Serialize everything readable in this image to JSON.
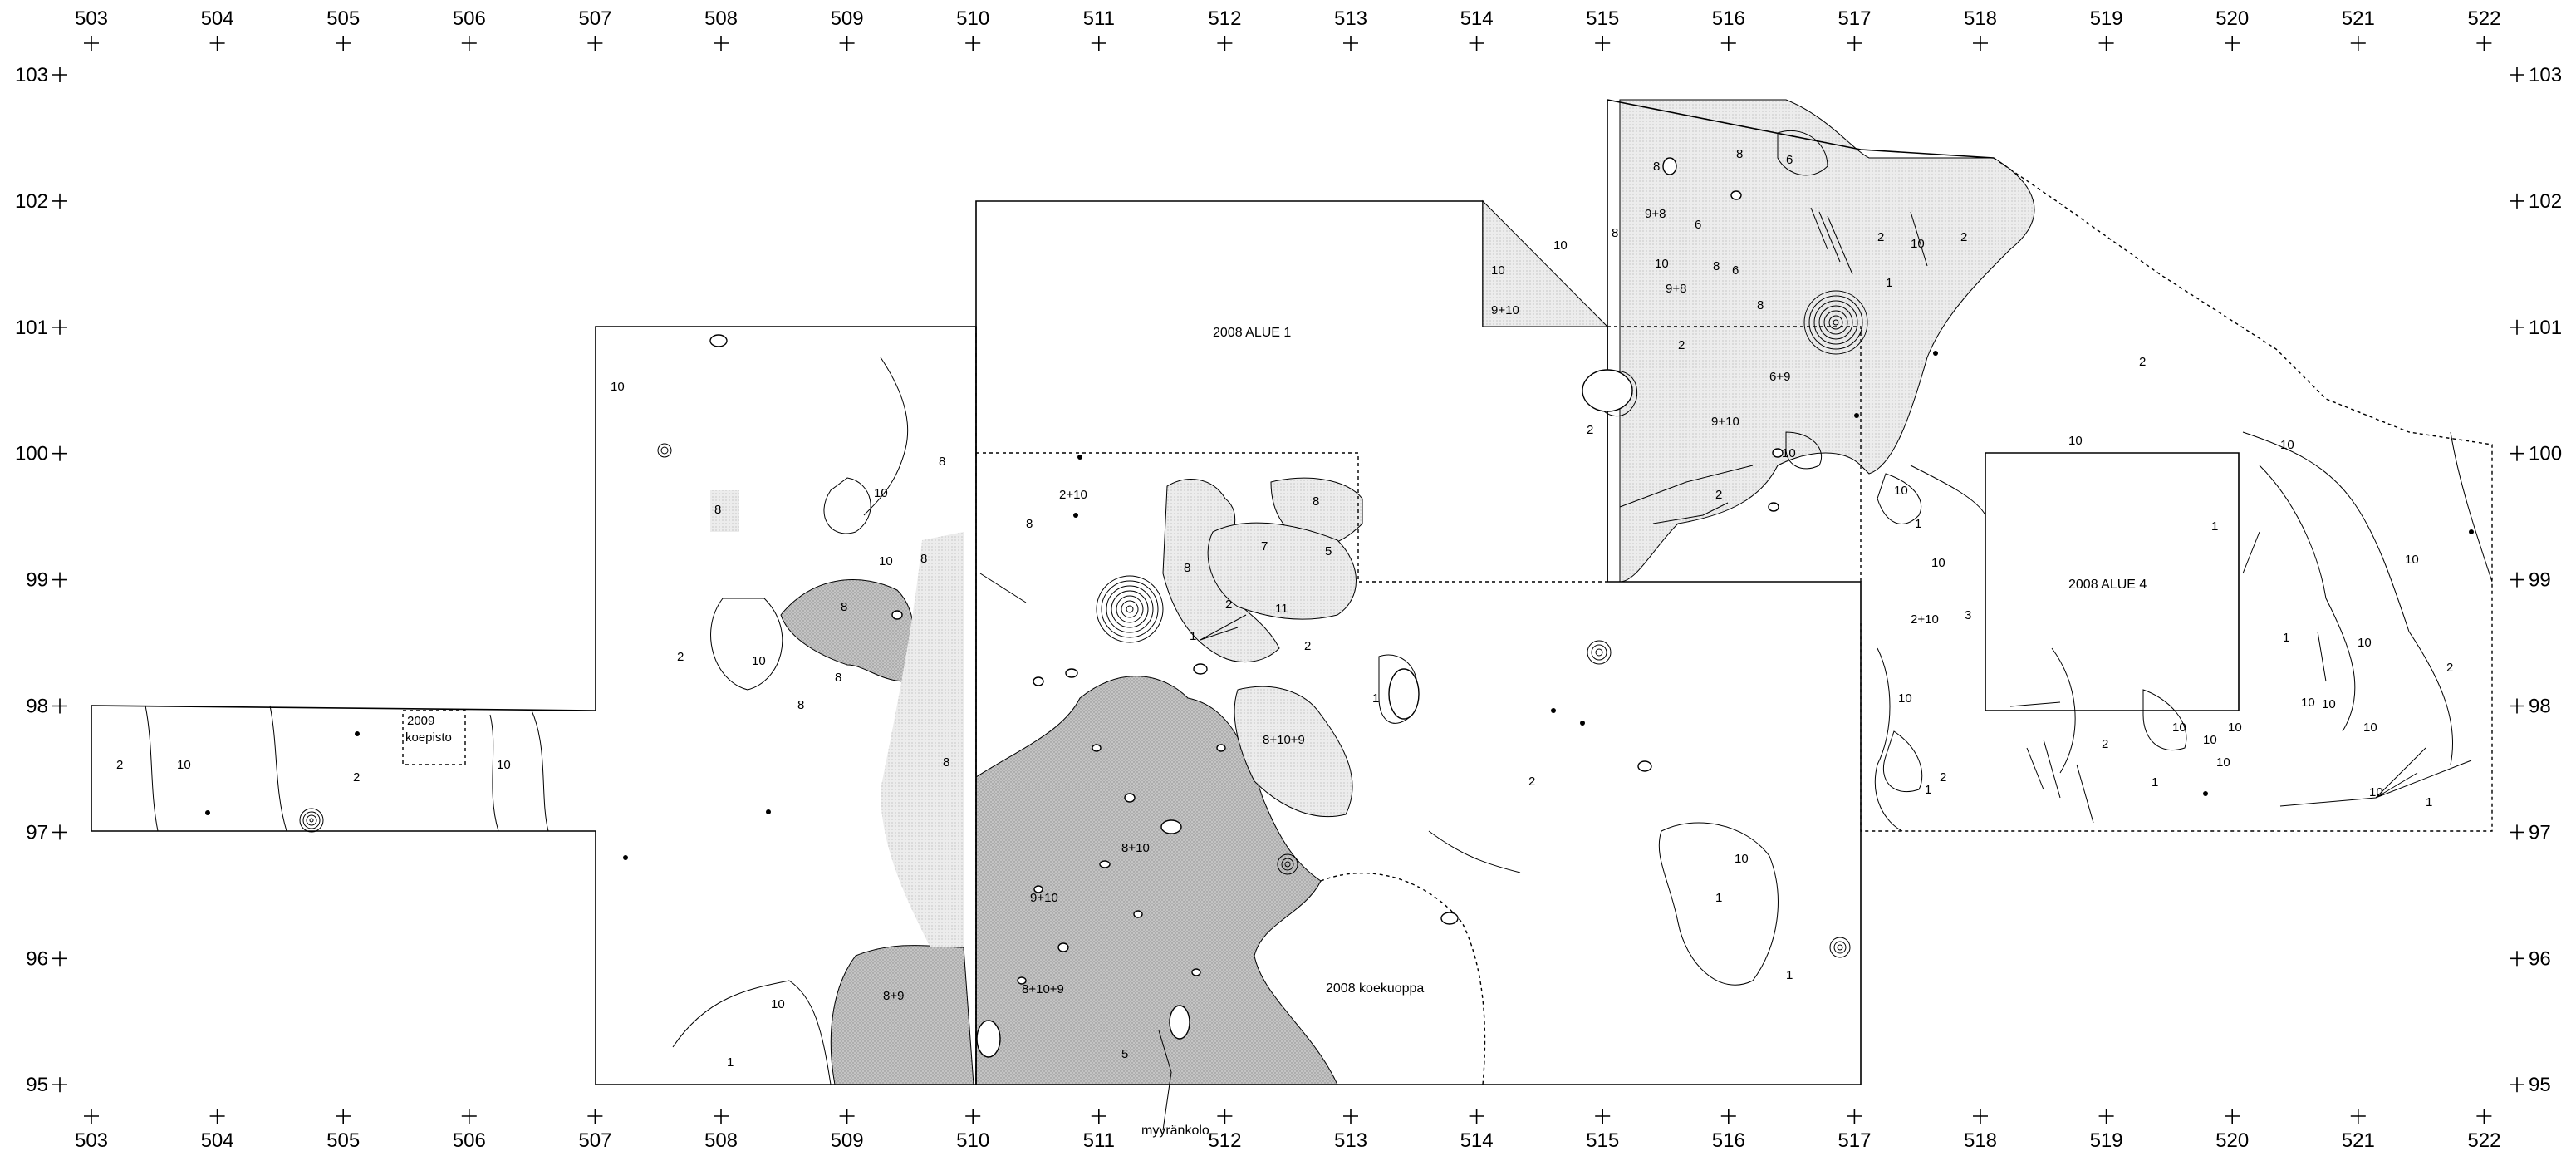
{
  "grid": {
    "x_labels": [
      "503",
      "504",
      "505",
      "506",
      "507",
      "508",
      "509",
      "510",
      "511",
      "512",
      "513",
      "514",
      "515",
      "516",
      "517",
      "518",
      "519",
      "520",
      "521",
      "522"
    ],
    "y_labels": [
      "103",
      "102",
      "101",
      "100",
      "99",
      "98",
      "97",
      "96",
      "95"
    ]
  },
  "areas": {
    "alue1": "2008 ALUE 1",
    "alue4": "2008 ALUE 4",
    "koekuoppa": "2008 koekuoppa",
    "koepisto_year": "2009",
    "koepisto_name": "koepisto",
    "myyrankolo": "myyränkolo"
  },
  "zones": [
    {
      "t": "10"
    },
    {
      "t": "2"
    },
    {
      "t": "10"
    },
    {
      "t": "2"
    },
    {
      "t": "10"
    },
    {
      "t": "10"
    },
    {
      "t": "8"
    },
    {
      "t": "10"
    },
    {
      "t": "8"
    },
    {
      "t": "8"
    },
    {
      "t": "8"
    },
    {
      "t": "8"
    },
    {
      "t": "2"
    },
    {
      "t": "10"
    },
    {
      "t": "8"
    },
    {
      "t": "8"
    },
    {
      "t": "10"
    },
    {
      "t": "1"
    },
    {
      "t": "8+9"
    },
    {
      "t": "2+10"
    },
    {
      "t": "8"
    },
    {
      "t": "8"
    },
    {
      "t": "8"
    },
    {
      "t": "7"
    },
    {
      "t": "5"
    },
    {
      "t": "2"
    },
    {
      "t": "11"
    },
    {
      "t": "2"
    },
    {
      "t": "1"
    },
    {
      "t": "8+10+9"
    },
    {
      "t": "8+10"
    },
    {
      "t": "9+10"
    },
    {
      "t": "8+10+9"
    },
    {
      "t": "5"
    },
    {
      "t": "1"
    },
    {
      "t": "2"
    },
    {
      "t": "10"
    },
    {
      "t": "1"
    },
    {
      "t": "1"
    },
    {
      "t": "10"
    },
    {
      "t": "9+10"
    },
    {
      "t": "10"
    },
    {
      "t": "8"
    },
    {
      "t": "6"
    },
    {
      "t": "8"
    },
    {
      "t": "9+8"
    },
    {
      "t": "8"
    },
    {
      "t": "10"
    },
    {
      "t": "6"
    },
    {
      "t": "8"
    },
    {
      "t": "6"
    },
    {
      "t": "9+8"
    },
    {
      "t": "8"
    },
    {
      "t": "2"
    },
    {
      "t": "6+9"
    },
    {
      "t": "9+10"
    },
    {
      "t": "2"
    },
    {
      "t": "10"
    },
    {
      "t": "2"
    },
    {
      "t": "10"
    },
    {
      "t": "2"
    },
    {
      "t": "1"
    },
    {
      "t": "2"
    },
    {
      "t": "2"
    },
    {
      "t": "10"
    },
    {
      "t": "10"
    },
    {
      "t": "10"
    },
    {
      "t": "1"
    },
    {
      "t": "10"
    },
    {
      "t": "2+10"
    },
    {
      "t": "3"
    },
    {
      "t": "10"
    },
    {
      "t": "1"
    },
    {
      "t": "2"
    },
    {
      "t": "2"
    },
    {
      "t": "1"
    },
    {
      "t": "10"
    },
    {
      "t": "10"
    },
    {
      "t": "10"
    },
    {
      "t": "10"
    },
    {
      "t": "10"
    },
    {
      "t": "10"
    },
    {
      "t": "1"
    },
    {
      "t": "10"
    },
    {
      "t": "10"
    },
    {
      "t": "1"
    },
    {
      "t": "2"
    },
    {
      "t": "10"
    },
    {
      "t": "1"
    },
    {
      "t": "10"
    }
  ]
}
